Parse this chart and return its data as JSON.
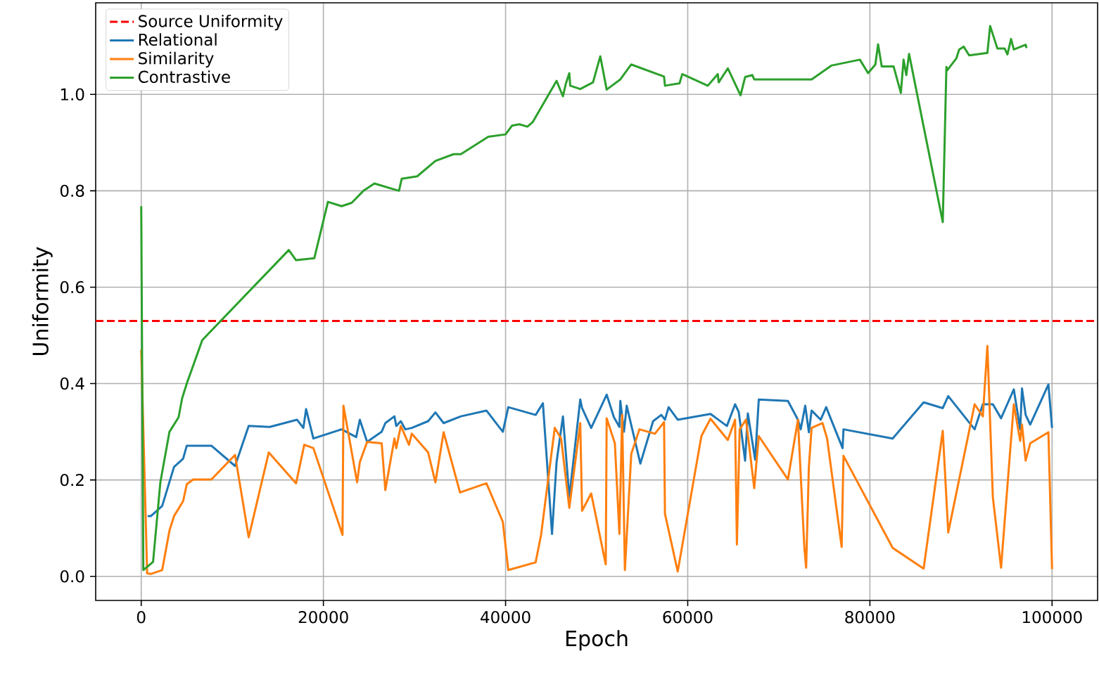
{
  "chart_data": {
    "type": "line",
    "xlabel": "Epoch",
    "ylabel": "Uniformity",
    "xlim": [
      -5000,
      105000
    ],
    "ylim": [
      -0.05,
      1.19
    ],
    "xticks": [
      0,
      20000,
      40000,
      60000,
      80000,
      100000
    ],
    "yticks": [
      {
        "value": 0,
        "label": "0.0"
      },
      {
        "value": 0.2,
        "label": "0.2"
      },
      {
        "value": 0.4,
        "label": "0.4"
      },
      {
        "value": 0.6,
        "label": "0.6"
      },
      {
        "value": 0.8,
        "label": "0.8"
      },
      {
        "value": 1.0,
        "label": "1.0"
      }
    ],
    "grid": true,
    "legend": "top left",
    "marker": "none",
    "line_style": "solid",
    "ref_lines": [
      {
        "axis": "y",
        "value": 0.53,
        "label": "Source Uniformity",
        "color": "#ff0000",
        "line_style": "dashed"
      }
    ],
    "series": [
      {
        "name": "Relational",
        "color": "#1f77b4",
        "x": [
          700,
          1050,
          2300,
          3600,
          4600,
          5000,
          7700,
          10300,
          11800,
          14100,
          17100,
          17800,
          18100,
          18900,
          22000,
          23600,
          24000,
          24800,
          26400,
          26800,
          27800,
          28000,
          28500,
          29000,
          29700,
          31500,
          32300,
          33200,
          35100,
          37900,
          39700,
          40300,
          43300,
          44100,
          45100,
          45600,
          46300,
          47000,
          48200,
          48400,
          49400,
          51100,
          51900,
          52500,
          52600,
          53000,
          53300,
          54800,
          56200,
          57100,
          57500,
          57900,
          58900,
          62500,
          64300,
          65200,
          65600,
          66300,
          66600,
          67400,
          67800,
          71000,
          72100,
          72400,
          72900,
          73300,
          73600,
          74600,
          75200,
          77000,
          77100,
          82500,
          85900,
          88000,
          88600,
          91500,
          92400,
          93500,
          94400,
          95800,
          96500,
          96700,
          97100,
          97600,
          99600,
          100000
        ],
        "values": [
          0.125,
          0.125,
          0.146,
          0.227,
          0.244,
          0.271,
          0.271,
          0.229,
          0.312,
          0.31,
          0.325,
          0.308,
          0.347,
          0.286,
          0.305,
          0.289,
          0.325,
          0.279,
          0.3,
          0.318,
          0.332,
          0.312,
          0.322,
          0.305,
          0.308,
          0.322,
          0.34,
          0.318,
          0.332,
          0.344,
          0.3,
          0.351,
          0.335,
          0.359,
          0.088,
          0.237,
          0.332,
          0.164,
          0.367,
          0.349,
          0.308,
          0.377,
          0.33,
          0.31,
          0.364,
          0.3,
          0.354,
          0.234,
          0.322,
          0.335,
          0.325,
          0.351,
          0.325,
          0.337,
          0.312,
          0.357,
          0.341,
          0.24,
          0.338,
          0.242,
          0.367,
          0.364,
          0.325,
          0.305,
          0.354,
          0.299,
          0.344,
          0.325,
          0.351,
          0.266,
          0.305,
          0.286,
          0.361,
          0.349,
          0.374,
          0.305,
          0.357,
          0.357,
          0.328,
          0.388,
          0.305,
          0.39,
          0.335,
          0.315,
          0.398,
          0.308
        ]
      },
      {
        "name": "Similarity",
        "color": "#ff7f0e",
        "x": [
          0,
          650,
          1050,
          2300,
          3100,
          3600,
          4600,
          5000,
          5700,
          7700,
          10300,
          11800,
          14000,
          17000,
          17900,
          18900,
          22100,
          22200,
          23700,
          24000,
          24800,
          26400,
          26800,
          27800,
          28000,
          28500,
          29400,
          29700,
          31500,
          32300,
          33200,
          35000,
          37900,
          39700,
          40300,
          43300,
          43900,
          45400,
          46100,
          47000,
          48200,
          48400,
          49400,
          51000,
          51100,
          52000,
          52500,
          52800,
          53100,
          53800,
          54700,
          56400,
          57400,
          57500,
          58900,
          61500,
          62500,
          64400,
          65200,
          65400,
          65700,
          66400,
          67300,
          67800,
          71000,
          72100,
          72800,
          73000,
          73300,
          73600,
          74800,
          75300,
          76900,
          77100,
          82500,
          85900,
          88000,
          88600,
          91500,
          92400,
          92900,
          93500,
          94400,
          95800,
          96500,
          96700,
          97100,
          97600,
          99600,
          100000
        ],
        "values": [
          0.47,
          0.006,
          0.005,
          0.013,
          0.095,
          0.125,
          0.156,
          0.191,
          0.201,
          0.201,
          0.252,
          0.081,
          0.257,
          0.193,
          0.273,
          0.266,
          0.086,
          0.354,
          0.195,
          0.237,
          0.279,
          0.276,
          0.179,
          0.286,
          0.266,
          0.312,
          0.273,
          0.296,
          0.257,
          0.195,
          0.299,
          0.174,
          0.193,
          0.113,
          0.013,
          0.029,
          0.086,
          0.308,
          0.286,
          0.142,
          0.318,
          0.136,
          0.172,
          0.025,
          0.328,
          0.276,
          0.088,
          0.335,
          0.013,
          0.254,
          0.305,
          0.296,
          0.32,
          0.13,
          0.01,
          0.291,
          0.327,
          0.283,
          0.325,
          0.066,
          0.305,
          0.325,
          0.183,
          0.291,
          0.201,
          0.325,
          0.061,
          0.018,
          0.227,
          0.308,
          0.318,
          0.286,
          0.061,
          0.25,
          0.059,
          0.016,
          0.302,
          0.091,
          0.357,
          0.332,
          0.478,
          0.164,
          0.018,
          0.357,
          0.281,
          0.315,
          0.24,
          0.276,
          0.299,
          0.015
        ]
      },
      {
        "name": "Contrastive",
        "color": "#2ca02c",
        "x": [
          0,
          230,
          1300,
          2100,
          3100,
          4100,
          4500,
          5000,
          6700,
          16200,
          17000,
          19000,
          20500,
          22000,
          23100,
          24400,
          25600,
          28300,
          28600,
          30300,
          32300,
          34300,
          35100,
          38100,
          40000,
          40700,
          41500,
          42400,
          43000,
          45600,
          46300,
          46600,
          47000,
          47100,
          48200,
          49600,
          50400,
          51100,
          52600,
          53800,
          57400,
          57500,
          59100,
          59400,
          62200,
          63300,
          63400,
          64400,
          65800,
          66300,
          67100,
          67300,
          73600,
          75800,
          78900,
          79800,
          80600,
          80900,
          81300,
          82600,
          83400,
          83700,
          84000,
          84300,
          88000,
          88400,
          88500,
          89500,
          89800,
          90300,
          90900,
          92900,
          93200,
          94000,
          94800,
          95100,
          95500,
          95800,
          97100,
          97200
        ],
        "values": [
          0.768,
          0.013,
          0.03,
          0.195,
          0.3,
          0.33,
          0.37,
          0.4,
          0.49,
          0.677,
          0.656,
          0.66,
          0.777,
          0.768,
          0.775,
          0.8,
          0.815,
          0.8,
          0.825,
          0.83,
          0.862,
          0.876,
          0.876,
          0.912,
          0.917,
          0.935,
          0.938,
          0.933,
          0.943,
          1.028,
          0.996,
          1.021,
          1.044,
          1.018,
          1.011,
          1.025,
          1.079,
          1.01,
          1.031,
          1.062,
          1.037,
          1.018,
          1.023,
          1.042,
          1.018,
          1.042,
          1.025,
          1.054,
          0.998,
          1.036,
          1.04,
          1.031,
          1.031,
          1.06,
          1.072,
          1.044,
          1.062,
          1.104,
          1.058,
          1.058,
          1.003,
          1.072,
          1.04,
          1.084,
          0.735,
          1.057,
          1.05,
          1.075,
          1.093,
          1.099,
          1.081,
          1.086,
          1.142,
          1.095,
          1.095,
          1.083,
          1.115,
          1.093,
          1.103,
          1.096
        ]
      }
    ]
  }
}
